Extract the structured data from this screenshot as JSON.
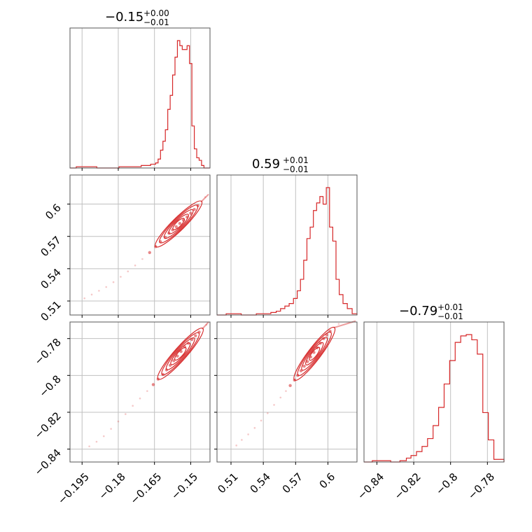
{
  "colors": {
    "series": "#d62728",
    "grid": "#c0c0c0",
    "frame": "#555555"
  },
  "chart_data": {
    "type": "corner",
    "panels": [
      {
        "name": "hist-p0",
        "type": "histogram",
        "title": {
          "value": "−0.15",
          "plus": "+0.00",
          "minus": "−0.01"
        },
        "xlim": [
          -0.2,
          -0.142
        ],
        "xticks": [
          -0.195,
          -0.18,
          -0.165,
          -0.15
        ],
        "x": [
          -0.199,
          -0.1958,
          -0.1912,
          -0.1866,
          -0.182,
          -0.1774,
          -0.1728,
          -0.1682,
          -0.165,
          -0.164,
          -0.163,
          -0.162,
          -0.161,
          -0.16,
          -0.159,
          -0.158,
          -0.157,
          -0.156,
          -0.155,
          -0.154,
          -0.153,
          -0.152,
          -0.151,
          -0.15,
          -0.149,
          -0.148,
          -0.147,
          -0.146,
          -0.145,
          -0.144
        ],
        "values": [
          0,
          1,
          1,
          0,
          0,
          1,
          1,
          2,
          3,
          4,
          7,
          14,
          21,
          30,
          46,
          57,
          73,
          87,
          100,
          96,
          93,
          93,
          96,
          82,
          33,
          15,
          8,
          6,
          2,
          0
        ]
      },
      {
        "name": "hist-p1",
        "type": "histogram",
        "title": {
          "value": "0.59",
          "plus": "+0.01",
          "minus": "−0.01"
        },
        "xlim": [
          0.497,
          0.627
        ],
        "xticks": [
          0.51,
          0.54,
          0.57,
          0.6
        ],
        "x": [
          0.502,
          0.509,
          0.516,
          0.523,
          0.53,
          0.537,
          0.544,
          0.55,
          0.554,
          0.558,
          0.562,
          0.566,
          0.57,
          0.573,
          0.576,
          0.579,
          0.582,
          0.585,
          0.588,
          0.591,
          0.594,
          0.597,
          0.6,
          0.603,
          0.606,
          0.609,
          0.612,
          0.616,
          0.62,
          0.625
        ],
        "values": [
          0,
          1,
          1,
          0,
          0,
          1,
          1,
          2,
          3,
          5,
          7,
          9,
          13,
          19,
          28,
          43,
          60,
          69,
          82,
          88,
          93,
          87,
          100,
          69,
          58,
          28,
          16,
          9,
          5,
          1
        ]
      },
      {
        "name": "hist-p2",
        "type": "histogram",
        "title": {
          "value": "−0.79",
          "plus": "+0.01",
          "minus": "−0.01"
        },
        "xlim": [
          -0.847,
          -0.771
        ],
        "xticks": [
          -0.84,
          -0.82,
          -0.8,
          -0.78
        ],
        "x": [
          -0.845,
          -0.84,
          -0.835,
          -0.83,
          -0.825,
          -0.823,
          -0.82,
          -0.817,
          -0.814,
          -0.811,
          -0.808,
          -0.805,
          -0.802,
          -0.799,
          -0.796,
          -0.793,
          -0.79,
          -0.787,
          -0.784,
          -0.781,
          -0.778,
          -0.775
        ],
        "values": [
          0,
          1,
          1,
          0,
          1,
          3,
          5,
          8,
          12,
          18,
          28,
          42,
          60,
          78,
          92,
          97,
          98,
          94,
          83,
          38,
          17,
          2
        ]
      },
      {
        "name": "scatter-p1-vs-p0",
        "type": "scatter",
        "xlim": [
          -0.2,
          -0.142
        ],
        "ylim": [
          0.497,
          0.627
        ],
        "xticks": [
          -0.195,
          -0.18,
          -0.165,
          -0.15
        ],
        "yticks": [
          0.51,
          0.54,
          0.57,
          0.6
        ],
        "x": [
          -0.194,
          -0.191,
          -0.188,
          -0.185,
          -0.182,
          -0.179,
          -0.176,
          -0.173,
          -0.17,
          -0.167,
          -0.1645,
          -0.1625,
          -0.1605,
          -0.159,
          -0.1575,
          -0.156,
          -0.1545,
          -0.153,
          -0.1515,
          -0.15,
          -0.1485,
          -0.147,
          -0.1455,
          -0.144
        ],
        "y": [
          0.5125,
          0.516,
          0.5195,
          0.523,
          0.5275,
          0.5325,
          0.5375,
          0.543,
          0.549,
          0.555,
          0.5605,
          0.565,
          0.569,
          0.573,
          0.576,
          0.579,
          0.582,
          0.585,
          0.588,
          0.5915,
          0.595,
          0.5985,
          0.6025,
          0.6065
        ]
      },
      {
        "name": "scatter-p2-vs-p0",
        "type": "scatter",
        "xlim": [
          -0.2,
          -0.142
        ],
        "ylim": [
          -0.847,
          -0.771
        ],
        "xticks": [
          -0.195,
          -0.18,
          -0.165,
          -0.15
        ],
        "yticks": [
          -0.84,
          -0.82,
          -0.8,
          -0.78
        ],
        "x": [
          -0.192,
          -0.189,
          -0.186,
          -0.183,
          -0.18,
          -0.177,
          -0.174,
          -0.171,
          -0.168,
          -0.1655,
          -0.1635,
          -0.1615,
          -0.16,
          -0.1585,
          -0.157,
          -0.1555,
          -0.154,
          -0.1525,
          -0.151,
          -0.1495,
          -0.148,
          -0.1465,
          -0.145,
          -0.1435
        ],
        "y": [
          -0.8385,
          -0.836,
          -0.833,
          -0.829,
          -0.825,
          -0.821,
          -0.8165,
          -0.8125,
          -0.8085,
          -0.805,
          -0.802,
          -0.7995,
          -0.797,
          -0.7945,
          -0.792,
          -0.7895,
          -0.787,
          -0.7845,
          -0.7825,
          -0.7805,
          -0.7785,
          -0.7765,
          -0.7745,
          -0.7725
        ]
      },
      {
        "name": "scatter-p2-vs-p1",
        "type": "scatter",
        "xlim": [
          0.497,
          0.627
        ],
        "ylim": [
          -0.847,
          -0.771
        ],
        "xticks": [
          0.51,
          0.54,
          0.57,
          0.6
        ],
        "yticks": [
          -0.84,
          -0.82,
          -0.8,
          -0.78
        ],
        "x": [
          0.515,
          0.52,
          0.526,
          0.532,
          0.538,
          0.544,
          0.55,
          0.556,
          0.561,
          0.565,
          0.569,
          0.572,
          0.575,
          0.578,
          0.581,
          0.584,
          0.587,
          0.59,
          0.593,
          0.596,
          0.599,
          0.602,
          0.606,
          0.61
        ],
        "y": [
          -0.838,
          -0.835,
          -0.832,
          -0.8285,
          -0.8245,
          -0.8205,
          -0.816,
          -0.812,
          -0.8085,
          -0.8055,
          -0.8025,
          -0.8,
          -0.7975,
          -0.795,
          -0.7925,
          -0.79,
          -0.7875,
          -0.785,
          -0.7825,
          -0.78,
          -0.778,
          -0.776,
          -0.774,
          -0.772
        ]
      }
    ]
  }
}
